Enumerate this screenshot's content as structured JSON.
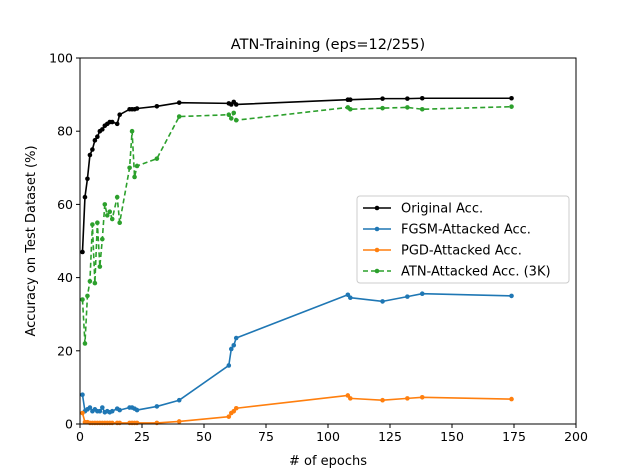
{
  "chart_data": {
    "type": "line",
    "title": "ATN-Training (eps=12/255)",
    "xlabel": "# of epochs",
    "ylabel": "Accuracy on Test Dataset (%)",
    "xlim": [
      0,
      200
    ],
    "ylim": [
      0,
      100
    ],
    "xticks": [
      "0",
      "25",
      "50",
      "75",
      "100",
      "125",
      "150",
      "175",
      "200"
    ],
    "yticks": [
      "0",
      "20",
      "40",
      "60",
      "80",
      "100"
    ],
    "grid": false,
    "legend_position": "center-right",
    "series": [
      {
        "name": "Original Acc.",
        "color": "#000000",
        "dashed": false,
        "x": [
          1,
          2,
          3,
          4,
          5,
          6,
          7,
          8,
          9,
          10,
          11,
          12,
          13,
          15,
          16,
          20,
          21,
          22,
          23,
          31,
          40,
          60,
          61,
          62,
          63,
          108,
          109,
          122,
          132,
          138,
          174
        ],
        "y": [
          47,
          62,
          67,
          73.5,
          75,
          77.5,
          78.5,
          80,
          80.5,
          81.5,
          82,
          82.5,
          82.5,
          82,
          84.5,
          86,
          86,
          86,
          86.2,
          86.8,
          87.8,
          87.6,
          87.3,
          88,
          87.3,
          88.6,
          88.6,
          88.9,
          88.9,
          89,
          89
        ]
      },
      {
        "name": "FGSM-Attacked Acc.",
        "color": "#1f77b4",
        "dashed": false,
        "x": [
          1,
          2,
          3,
          4,
          5,
          6,
          7,
          8,
          9,
          10,
          11,
          12,
          13,
          15,
          16,
          20,
          21,
          22,
          23,
          31,
          40,
          60,
          61,
          62,
          63,
          108,
          109,
          122,
          132,
          138,
          174
        ],
        "y": [
          8,
          3.5,
          4,
          4.5,
          3.5,
          4,
          3.5,
          3.5,
          4.5,
          3.2,
          3.5,
          3.2,
          3.5,
          4.2,
          3.8,
          4.5,
          4.5,
          4.2,
          3.8,
          4.8,
          6.5,
          16,
          20.5,
          21.5,
          23.5,
          35.3,
          34.5,
          33.5,
          34.8,
          35.6,
          35
        ]
      },
      {
        "name": "PGD-Attacked Acc.",
        "color": "#ff7f0e",
        "dashed": false,
        "x": [
          1,
          2,
          3,
          4,
          5,
          6,
          7,
          8,
          9,
          10,
          11,
          12,
          13,
          15,
          16,
          20,
          21,
          22,
          23,
          31,
          40,
          60,
          61,
          62,
          63,
          108,
          109,
          122,
          132,
          138,
          174
        ],
        "y": [
          3,
          0.5,
          0.5,
          0.3,
          0.3,
          0.3,
          0.3,
          0.3,
          0.3,
          0.3,
          0.3,
          0.3,
          0.3,
          0.3,
          0.3,
          0.3,
          0.3,
          0.3,
          0.3,
          0.3,
          0.7,
          2,
          3,
          3.5,
          4.3,
          7.8,
          7,
          6.5,
          7,
          7.3,
          6.8
        ]
      },
      {
        "name": "ATN-Attacked Acc. (3K)",
        "color": "#2ca02c",
        "dashed": true,
        "x": [
          1,
          2,
          3,
          4,
          5,
          6,
          7,
          8,
          9,
          10,
          11,
          12,
          13,
          15,
          16,
          20,
          21,
          22,
          23,
          31,
          40,
          60,
          61,
          62,
          63,
          108,
          109,
          122,
          132,
          138,
          174
        ],
        "y": [
          34,
          22,
          35,
          39,
          54.5,
          38.5,
          55,
          43,
          50.5,
          60,
          57,
          58,
          56,
          62,
          55,
          70,
          80,
          67.5,
          70.5,
          72.5,
          84,
          84.5,
          83.5,
          85,
          83,
          86.5,
          86,
          86.3,
          86.5,
          86,
          86.7
        ]
      }
    ]
  }
}
